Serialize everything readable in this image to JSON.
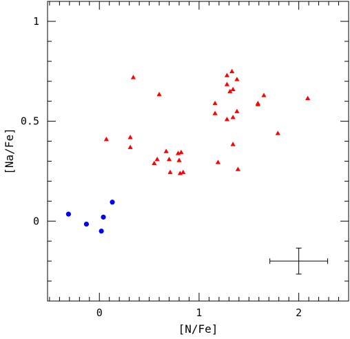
{
  "chart_data": {
    "type": "scatter",
    "title": "",
    "xlabel": "[N/Fe]",
    "ylabel": "[Na/Fe]",
    "xlim": [
      -0.52,
      2.5
    ],
    "ylim": [
      -0.4,
      1.1
    ],
    "x_major_ticks": [
      0,
      1,
      2
    ],
    "x_tick_labels": [
      "0",
      "1",
      "2"
    ],
    "y_major_ticks": [
      0,
      0.5,
      1
    ],
    "y_tick_labels": [
      "0",
      "0.5",
      "1"
    ],
    "x_minor_step": 0.1,
    "y_minor_step": 0.1,
    "grid": false,
    "legend": "none",
    "series": [
      {
        "marker": "circle",
        "color": "#0000ff",
        "points": [
          [
            -0.31,
            0.035
          ],
          [
            -0.13,
            -0.015
          ],
          [
            0.02,
            -0.05
          ],
          [
            0.04,
            0.02
          ],
          [
            0.13,
            0.095
          ]
        ]
      },
      {
        "marker": "triangle",
        "color": "#ff0000",
        "points": [
          [
            0.07,
            0.41
          ],
          [
            0.31,
            0.42
          ],
          [
            0.31,
            0.37
          ],
          [
            0.34,
            0.72
          ],
          [
            0.55,
            0.29
          ],
          [
            0.58,
            0.31
          ],
          [
            0.6,
            0.635
          ],
          [
            0.67,
            0.35
          ],
          [
            0.7,
            0.31
          ],
          [
            0.71,
            0.245
          ],
          [
            0.79,
            0.34
          ],
          [
            0.8,
            0.305
          ],
          [
            0.81,
            0.24
          ],
          [
            0.82,
            0.345
          ],
          [
            0.84,
            0.245
          ],
          [
            1.16,
            0.59
          ],
          [
            1.16,
            0.54
          ],
          [
            1.19,
            0.295
          ],
          [
            1.28,
            0.73
          ],
          [
            1.28,
            0.685
          ],
          [
            1.28,
            0.51
          ],
          [
            1.31,
            0.65
          ],
          [
            1.33,
            0.75
          ],
          [
            1.34,
            0.66
          ],
          [
            1.34,
            0.385
          ],
          [
            1.34,
            0.52
          ],
          [
            1.38,
            0.71
          ],
          [
            1.38,
            0.55
          ],
          [
            1.39,
            0.26
          ],
          [
            1.59,
            0.59
          ],
          [
            1.59,
            0.585
          ],
          [
            1.65,
            0.63
          ],
          [
            1.79,
            0.44
          ],
          [
            2.09,
            0.615
          ]
        ]
      }
    ],
    "error_bar": {
      "x": 2.0,
      "y": -0.2,
      "xerr": 0.29,
      "yerr": 0.065
    }
  }
}
